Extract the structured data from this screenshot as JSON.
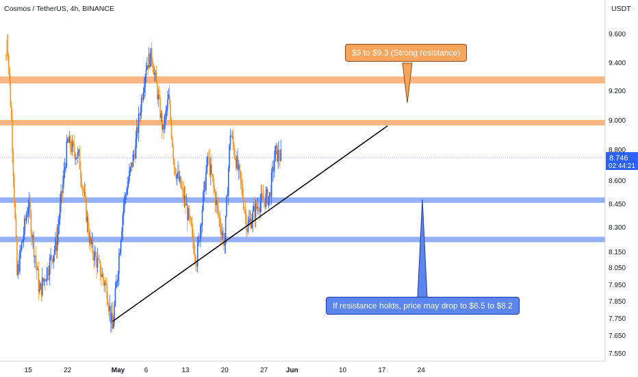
{
  "header": {
    "symbol_title": "Cosmos / TetherUS, 4h, BINANCE",
    "axis_unit": "USDT"
  },
  "price_label": {
    "value": "8.746",
    "countdown": "02:44:21"
  },
  "annotations": {
    "resistance_note": "$9 to $9.3 (Strong resistance)",
    "support_note": "If resistance holds, price may drop to $8.5 to $8.2"
  },
  "colors": {
    "up_candle": "#2962ff",
    "down_candle": "#f7931a",
    "resistance_zone": "#f7a463",
    "support_zone": "#7b9cf5",
    "trendline": "#000000",
    "price_label_bg": "#2962ff"
  },
  "chart_data": {
    "type": "candlestick",
    "interval": "4h",
    "xlim": [
      "2022-04-11",
      "2022-06-24"
    ],
    "x_ticks": [
      {
        "label": "15",
        "date": "2022-04-15"
      },
      {
        "label": "22",
        "date": "2022-04-22"
      },
      {
        "label": "May",
        "date": "2022-05-01"
      },
      {
        "label": "6",
        "date": "2022-05-06"
      },
      {
        "label": "13",
        "date": "2022-05-13"
      },
      {
        "label": "20",
        "date": "2022-05-20"
      },
      {
        "label": "27",
        "date": "2022-05-27"
      },
      {
        "label": "Jun",
        "date": "2022-06-01"
      },
      {
        "label": "10",
        "date": "2022-06-10"
      },
      {
        "label": "17",
        "date": "2022-06-17"
      },
      {
        "label": "24",
        "date": "2022-06-24"
      }
    ],
    "y_ticks": [
      "9.600",
      "9.400",
      "9.200",
      "9.000",
      "8.800",
      "8.600",
      "8.450",
      "8.300",
      "8.150",
      "8.050",
      "7.950",
      "7.850",
      "7.750",
      "7.650",
      "7.550"
    ],
    "last_price": 8.746,
    "resistance_zones": [
      [
        9.25,
        9.3
      ],
      [
        8.97,
        9.0
      ]
    ],
    "support_zones": [
      [
        8.46,
        8.49
      ],
      [
        8.21,
        8.24
      ]
    ],
    "trendline": {
      "start": {
        "date": "2022-04-30",
        "price": 7.73
      },
      "end": {
        "date": "2022-06-18",
        "price": 8.96
      }
    },
    "swing_path": [
      {
        "date": "2022-04-11",
        "price": 9.75
      },
      {
        "date": "2022-04-12",
        "price": 9.0
      },
      {
        "date": "2022-04-13",
        "price": 8.0
      },
      {
        "date": "2022-04-15",
        "price": 8.45
      },
      {
        "date": "2022-04-17",
        "price": 7.9
      },
      {
        "date": "2022-04-20",
        "price": 8.2
      },
      {
        "date": "2022-04-22",
        "price": 8.85
      },
      {
        "date": "2022-04-24",
        "price": 8.75
      },
      {
        "date": "2022-04-26",
        "price": 8.2
      },
      {
        "date": "2022-04-29",
        "price": 7.92
      },
      {
        "date": "2022-04-30",
        "price": 7.68
      },
      {
        "date": "2022-05-02",
        "price": 8.45
      },
      {
        "date": "2022-05-04",
        "price": 8.8
      },
      {
        "date": "2022-05-06",
        "price": 9.38
      },
      {
        "date": "2022-05-07",
        "price": 9.45
      },
      {
        "date": "2022-05-09",
        "price": 8.92
      },
      {
        "date": "2022-05-10",
        "price": 9.15
      },
      {
        "date": "2022-05-11",
        "price": 8.7
      },
      {
        "date": "2022-05-13",
        "price": 8.45
      },
      {
        "date": "2022-05-15",
        "price": 8.1
      },
      {
        "date": "2022-05-17",
        "price": 8.75
      },
      {
        "date": "2022-05-19",
        "price": 8.35
      },
      {
        "date": "2022-05-20",
        "price": 8.2
      },
      {
        "date": "2022-05-21",
        "price": 8.92
      },
      {
        "date": "2022-05-23",
        "price": 8.55
      },
      {
        "date": "2022-05-24",
        "price": 8.3
      },
      {
        "date": "2022-05-26",
        "price": 8.45
      },
      {
        "date": "2022-05-28",
        "price": 8.5
      },
      {
        "date": "2022-05-29",
        "price": 8.78
      },
      {
        "date": "2022-05-30",
        "price": 8.75
      }
    ]
  }
}
